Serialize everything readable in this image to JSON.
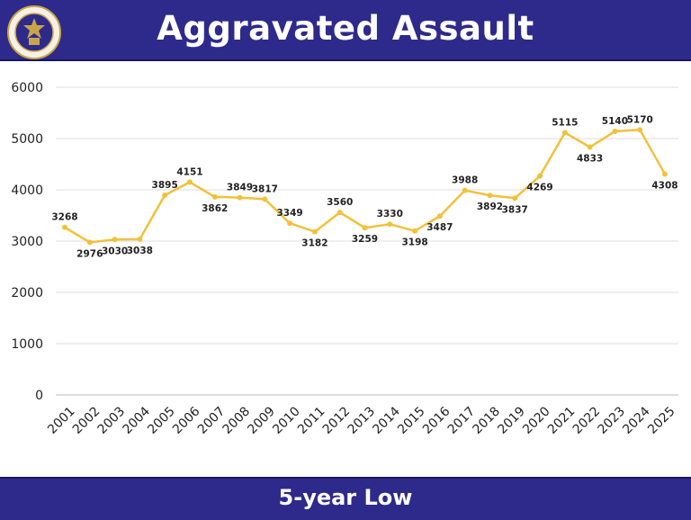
{
  "header": {
    "title": "Aggravated Assault",
    "seal_icon": "police-seal-icon"
  },
  "footer": {
    "text": "5-year Low"
  },
  "colors": {
    "banner": "#2e2a8c",
    "line": "#f2c13a",
    "grid": "#dddddd"
  },
  "chart_data": {
    "type": "line",
    "title": "Aggravated Assault",
    "subtitle": "5-year Low",
    "xlabel": "",
    "ylabel": "",
    "ylim": [
      0,
      6000
    ],
    "yticks": [
      0,
      1000,
      2000,
      3000,
      4000,
      5000,
      6000
    ],
    "grid": true,
    "legend": "none",
    "categories": [
      "2001",
      "2002",
      "2003",
      "2004",
      "2005",
      "2006",
      "2007",
      "2008",
      "2009",
      "2010",
      "2011",
      "2012",
      "2013",
      "2014",
      "2015",
      "2016",
      "2017",
      "2018",
      "2019",
      "2020",
      "2021",
      "2022",
      "2023",
      "2024",
      "2025"
    ],
    "series": [
      {
        "values": [
          3268,
          2976,
          3030,
          3038,
          3895,
          4151,
          3862,
          3849,
          3817,
          3349,
          3182,
          3560,
          3259,
          3330,
          3198,
          3487,
          3988,
          3892,
          3837,
          4269,
          5115,
          4833,
          5140,
          5170,
          4308
        ]
      }
    ],
    "label_positions": [
      "above",
      "below",
      "below",
      "below",
      "above",
      "above",
      "below",
      "above",
      "above",
      "above",
      "below",
      "above",
      "below",
      "above",
      "below",
      "below",
      "above",
      "below",
      "below",
      "below",
      "above",
      "below",
      "above",
      "above",
      "below"
    ]
  }
}
